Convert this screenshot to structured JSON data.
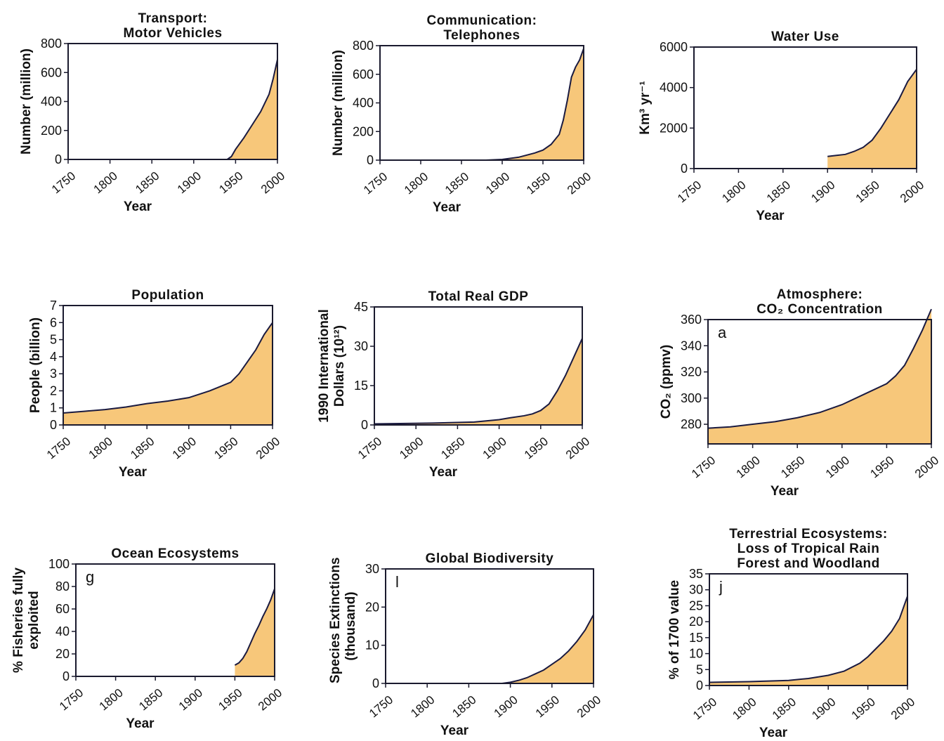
{
  "theme": {
    "fill": "#f7c77a",
    "line": "#1a1a40",
    "axis": "#1a1a2e"
  },
  "chart_data": [
    {
      "id": "transport",
      "type": "area",
      "title": "Transport:\nMotor Vehicles",
      "ylabel": "Number (million)",
      "xlabel": "Year",
      "xlim": [
        1750,
        2000
      ],
      "ylim": [
        0,
        800
      ],
      "x_ticks": [
        1750,
        1800,
        1850,
        1900,
        1950,
        2000
      ],
      "y_ticks": [
        0,
        200,
        400,
        600,
        800
      ],
      "y_tick_labels": [
        "0",
        "200",
        "400",
        "600",
        "800"
      ],
      "x": [
        1750,
        1900,
        1940,
        1945,
        1950,
        1960,
        1970,
        1980,
        1990,
        1995,
        2000
      ],
      "y": [
        0,
        0,
        0,
        20,
        70,
        150,
        240,
        330,
        450,
        560,
        690
      ]
    },
    {
      "id": "telephones",
      "type": "area",
      "title": "Communication:\nTelephones",
      "ylabel": "Number (million)",
      "xlabel": "Year",
      "xlim": [
        1750,
        2000
      ],
      "ylim": [
        0,
        800
      ],
      "x_ticks": [
        1750,
        1800,
        1850,
        1900,
        1950,
        2000
      ],
      "y_ticks": [
        0,
        200,
        400,
        600,
        800
      ],
      "y_tick_labels": [
        "0",
        "200",
        "400",
        "600",
        "800"
      ],
      "x": [
        1750,
        1880,
        1900,
        1920,
        1940,
        1950,
        1960,
        1970,
        1975,
        1980,
        1985,
        1990,
        1995,
        2000
      ],
      "y": [
        0,
        0,
        5,
        20,
        50,
        70,
        110,
        180,
        280,
        420,
        580,
        650,
        700,
        780
      ]
    },
    {
      "id": "water",
      "type": "area",
      "title": "Water Use",
      "ylabel": "Km³ yr⁻¹",
      "xlabel": "Year",
      "xlim": [
        1750,
        2000
      ],
      "ylim": [
        0,
        6000
      ],
      "x_ticks": [
        1750,
        1800,
        1850,
        1900,
        1950,
        2000
      ],
      "y_ticks": [
        0,
        2000,
        4000,
        6000
      ],
      "y_tick_labels": [
        "0",
        "2000",
        "4000",
        "6000"
      ],
      "x": [
        1900,
        1910,
        1920,
        1930,
        1940,
        1950,
        1960,
        1970,
        1980,
        1990,
        2000
      ],
      "y": [
        600,
        650,
        700,
        850,
        1050,
        1400,
        2000,
        2700,
        3400,
        4300,
        4900
      ]
    },
    {
      "id": "population",
      "type": "area",
      "title": "Population",
      "ylabel": "People (billion)",
      "xlabel": "Year",
      "xlim": [
        1750,
        2000
      ],
      "ylim": [
        0,
        7
      ],
      "x_ticks": [
        1750,
        1800,
        1850,
        1900,
        1950,
        2000
      ],
      "y_ticks": [
        0,
        1,
        2,
        3,
        4,
        5,
        6,
        7
      ],
      "y_tick_labels": [
        "0",
        "1",
        "2",
        "3",
        "4",
        "5",
        "6",
        "7"
      ],
      "x": [
        1750,
        1775,
        1800,
        1825,
        1850,
        1875,
        1900,
        1925,
        1950,
        1960,
        1970,
        1980,
        1990,
        2000
      ],
      "y": [
        0.7,
        0.8,
        0.9,
        1.05,
        1.25,
        1.4,
        1.6,
        2.0,
        2.5,
        3.0,
        3.7,
        4.4,
        5.3,
        6.0
      ]
    },
    {
      "id": "gdp",
      "type": "area",
      "title": "Total Real GDP",
      "ylabel": "1990 International\nDollars (10¹²)",
      "xlabel": "Year",
      "xlim": [
        1750,
        2000
      ],
      "ylim": [
        0,
        45
      ],
      "x_ticks": [
        1750,
        1800,
        1850,
        1900,
        1950,
        2000
      ],
      "y_ticks": [
        0,
        15,
        30,
        45
      ],
      "y_tick_labels": [
        "0",
        "15",
        "30",
        "45"
      ],
      "x": [
        1750,
        1820,
        1870,
        1900,
        1913,
        1930,
        1940,
        1950,
        1960,
        1970,
        1980,
        1990,
        2000
      ],
      "y": [
        0.4,
        0.7,
        1.1,
        2.0,
        2.7,
        3.5,
        4.2,
        5.5,
        8.0,
        13.0,
        19.0,
        26.0,
        33.0
      ]
    },
    {
      "id": "co2",
      "type": "area",
      "title": "Atmosphere:\nCO₂ Concentration",
      "panel_letter": "a",
      "ylabel": "CO₂ (ppmv)",
      "xlabel": "Year",
      "xlim": [
        1750,
        2000
      ],
      "ylim": [
        265,
        360
      ],
      "x_ticks": [
        1750,
        1800,
        1850,
        1900,
        1950,
        2000
      ],
      "y_ticks": [
        280,
        300,
        320,
        340,
        360
      ],
      "y_tick_labels": [
        "280",
        "300",
        "320",
        "340",
        "360"
      ],
      "x": [
        1750,
        1775,
        1800,
        1825,
        1850,
        1875,
        1900,
        1925,
        1950,
        1960,
        1970,
        1980,
        1990,
        2000
      ],
      "y": [
        277,
        278,
        280,
        282,
        285,
        289,
        295,
        303,
        311,
        317,
        325,
        338,
        352,
        368
      ]
    },
    {
      "id": "ocean",
      "type": "area",
      "title": "Ocean Ecosystems",
      "panel_letter": "g",
      "ylabel": "% Fisheries fully\nexploited",
      "xlabel": "Year",
      "xlim": [
        1750,
        2000
      ],
      "ylim": [
        0,
        100
      ],
      "x_ticks": [
        1750,
        1800,
        1850,
        1900,
        1950,
        2000
      ],
      "y_ticks": [
        0,
        20,
        40,
        60,
        80,
        100
      ],
      "y_tick_labels": [
        "0",
        "20",
        "40",
        "60",
        "80",
        "100"
      ],
      "x": [
        1950,
        1955,
        1960,
        1965,
        1970,
        1975,
        1980,
        1985,
        1990,
        1995,
        2000
      ],
      "y": [
        10,
        12,
        16,
        22,
        30,
        38,
        45,
        53,
        60,
        68,
        78
      ]
    },
    {
      "id": "biodiversity",
      "type": "area",
      "title": "Global Biodiversity",
      "panel_letter": "l",
      "ylabel": "Species Extinctions\n(thousand)",
      "xlabel": "Year",
      "xlim": [
        1750,
        2000
      ],
      "ylim": [
        0,
        30
      ],
      "x_ticks": [
        1750,
        1800,
        1850,
        1900,
        1950,
        2000
      ],
      "y_ticks": [
        0,
        10,
        20,
        30
      ],
      "y_tick_labels": [
        "0",
        "10",
        "20",
        "30"
      ],
      "x": [
        1750,
        1890,
        1900,
        1910,
        1920,
        1930,
        1940,
        1950,
        1960,
        1970,
        1980,
        1990,
        2000
      ],
      "y": [
        0,
        0,
        0.3,
        0.8,
        1.5,
        2.5,
        3.5,
        5.0,
        6.5,
        8.5,
        11.0,
        14.0,
        18.0
      ]
    },
    {
      "id": "terrestrial",
      "type": "area",
      "title": "Terrestrial Ecosystems:\nLoss of Tropical Rain\nForest and Woodland",
      "panel_letter": "j",
      "ylabel": "% of 1700 value",
      "xlabel": "Year",
      "xlim": [
        1750,
        2000
      ],
      "ylim": [
        0,
        35
      ],
      "x_ticks": [
        1750,
        1800,
        1850,
        1900,
        1950,
        2000
      ],
      "y_ticks": [
        0,
        5,
        10,
        15,
        20,
        25,
        30,
        35
      ],
      "y_tick_labels": [
        "0",
        "5",
        "10",
        "15",
        "20",
        "25",
        "30",
        "35"
      ],
      "x": [
        1750,
        1800,
        1850,
        1875,
        1900,
        1920,
        1940,
        1950,
        1960,
        1970,
        1980,
        1990,
        2000
      ],
      "y": [
        1,
        1.2,
        1.6,
        2.2,
        3.2,
        4.5,
        7.0,
        9.0,
        11.5,
        14.0,
        17.0,
        21.0,
        28.0
      ]
    }
  ]
}
